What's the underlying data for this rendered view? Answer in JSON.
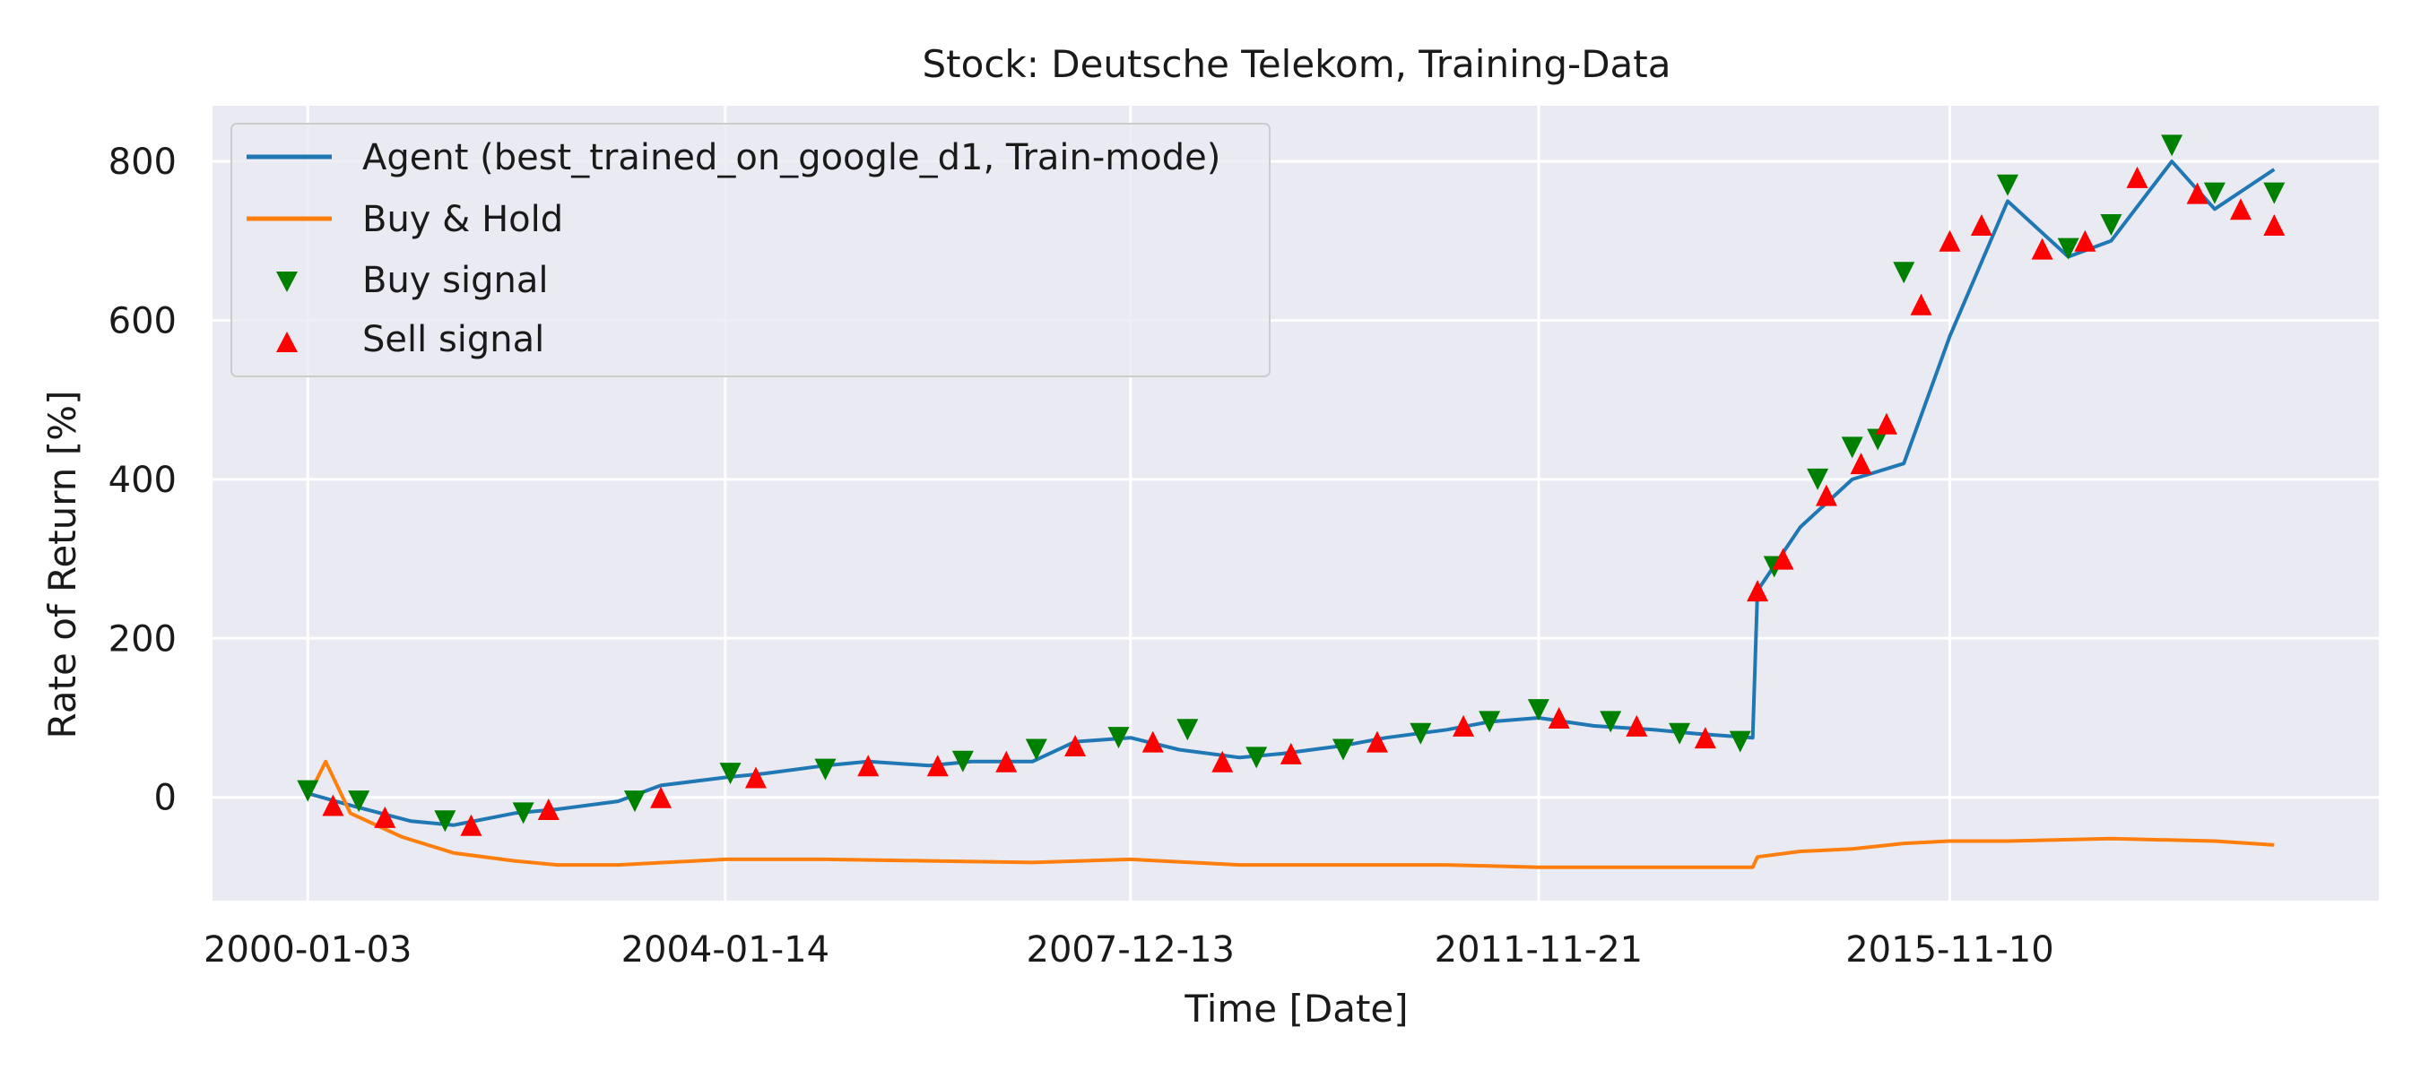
{
  "chart_data": {
    "type": "line",
    "title": "Stock: Deutsche Telekom, Training-Data",
    "xlabel": "Time [Date]",
    "ylabel": "Rate of Return [%]",
    "x_ticks": [
      "2000-01-03",
      "2004-01-14",
      "2007-12-13",
      "2011-11-21",
      "2015-11-10"
    ],
    "y_ticks": [
      0,
      200,
      400,
      600,
      800
    ],
    "xlim": [
      "1999-02-01",
      "2020-01-01"
    ],
    "ylim": [
      -130,
      870
    ],
    "grid": true,
    "legend_location": "upper left",
    "colors": {
      "agent": "#1f77b4",
      "buy_hold": "#ff7f0e",
      "buy_signal": "#008000",
      "sell_signal": "#ff0000",
      "plot_background": "#eaeaf2",
      "grid": "#ffffff"
    },
    "series": [
      {
        "name": "Agent (best_trained_on_google_d1, Train-mode)",
        "kind": "line",
        "x": [
          "2000-01-03",
          "2000-06-01",
          "2001-01-01",
          "2001-06-01",
          "2002-01-01",
          "2002-06-01",
          "2003-01-01",
          "2003-06-01",
          "2004-01-14",
          "2004-06-01",
          "2005-01-01",
          "2005-06-01",
          "2006-01-01",
          "2006-06-01",
          "2007-01-01",
          "2007-06-01",
          "2007-12-13",
          "2008-06-01",
          "2009-01-01",
          "2009-06-01",
          "2010-01-01",
          "2010-06-01",
          "2011-01-01",
          "2011-06-01",
          "2011-11-21",
          "2012-06-01",
          "2013-01-01",
          "2013-06-01",
          "2013-12-15",
          "2014-01-01",
          "2014-06-01",
          "2014-12-01",
          "2015-06-01",
          "2015-11-10",
          "2016-06-01",
          "2017-01-01",
          "2017-06-01",
          "2018-01-01",
          "2018-06-01",
          "2018-12-28"
        ],
        "y": [
          5,
          -10,
          -30,
          -35,
          -20,
          -15,
          -5,
          15,
          25,
          30,
          40,
          45,
          40,
          45,
          45,
          70,
          75,
          60,
          50,
          55,
          65,
          75,
          85,
          95,
          100,
          90,
          85,
          80,
          75,
          260,
          340,
          400,
          420,
          580,
          750,
          680,
          700,
          800,
          740,
          790
        ]
      },
      {
        "name": "Buy & Hold",
        "kind": "line",
        "x": [
          "2000-01-03",
          "2000-03-06",
          "2000-06-01",
          "2000-12-01",
          "2001-06-01",
          "2002-01-01",
          "2002-06-01",
          "2003-01-01",
          "2004-01-14",
          "2005-01-01",
          "2006-01-01",
          "2007-01-01",
          "2007-12-13",
          "2009-01-01",
          "2010-01-01",
          "2011-01-01",
          "2011-11-21",
          "2012-06-01",
          "2013-01-01",
          "2013-12-15",
          "2014-01-01",
          "2014-06-01",
          "2014-12-01",
          "2015-06-01",
          "2015-11-10",
          "2016-06-01",
          "2017-06-01",
          "2018-06-01",
          "2018-12-28"
        ],
        "y": [
          0,
          45,
          -20,
          -50,
          -70,
          -80,
          -85,
          -85,
          -78,
          -78,
          -80,
          -82,
          -78,
          -85,
          -85,
          -85,
          -88,
          -88,
          -88,
          -88,
          -75,
          -68,
          -65,
          -58,
          -55,
          -55,
          -52,
          -55,
          -60
        ]
      },
      {
        "name": "Buy signal",
        "kind": "marker",
        "marker": "triangle-down",
        "x": [
          "2000-01-03",
          "2000-07-01",
          "2001-05-01",
          "2002-02-01",
          "2003-03-01",
          "2004-02-01",
          "2005-01-01",
          "2006-05-01",
          "2007-01-15",
          "2007-11-01",
          "2008-07-01",
          "2009-03-01",
          "2010-01-01",
          "2010-10-01",
          "2011-06-01",
          "2011-11-21",
          "2012-08-01",
          "2013-04-01",
          "2013-11-01",
          "2014-03-01",
          "2014-08-01",
          "2014-12-01",
          "2015-03-01",
          "2015-06-01",
          "2016-06-01",
          "2017-01-01",
          "2017-06-01",
          "2018-01-01",
          "2018-06-01",
          "2018-12-28"
        ],
        "y": [
          8,
          -5,
          -30,
          -20,
          -5,
          30,
          35,
          45,
          60,
          75,
          85,
          50,
          60,
          80,
          95,
          110,
          95,
          80,
          70,
          290,
          400,
          440,
          450,
          660,
          770,
          690,
          720,
          820,
          760,
          760
        ]
      },
      {
        "name": "Sell signal",
        "kind": "marker",
        "marker": "triangle-up",
        "x": [
          "2000-04-01",
          "2000-10-01",
          "2001-08-01",
          "2002-05-01",
          "2003-06-01",
          "2004-05-01",
          "2005-06-01",
          "2006-02-01",
          "2006-10-01",
          "2007-06-01",
          "2008-03-01",
          "2008-11-01",
          "2009-07-01",
          "2010-05-01",
          "2011-03-01",
          "2012-02-01",
          "2012-11-01",
          "2013-07-01",
          "2014-01-01",
          "2014-04-01",
          "2014-09-01",
          "2015-01-01",
          "2015-04-01",
          "2015-08-01",
          "2015-11-10",
          "2016-03-01",
          "2016-10-01",
          "2017-03-01",
          "2017-09-01",
          "2018-04-01",
          "2018-09-01",
          "2018-12-28"
        ],
        "y": [
          -10,
          -25,
          -35,
          -15,
          0,
          25,
          40,
          40,
          45,
          65,
          70,
          45,
          55,
          70,
          90,
          100,
          90,
          75,
          260,
          300,
          380,
          420,
          470,
          620,
          700,
          720,
          690,
          700,
          780,
          760,
          740,
          720
        ]
      }
    ]
  }
}
